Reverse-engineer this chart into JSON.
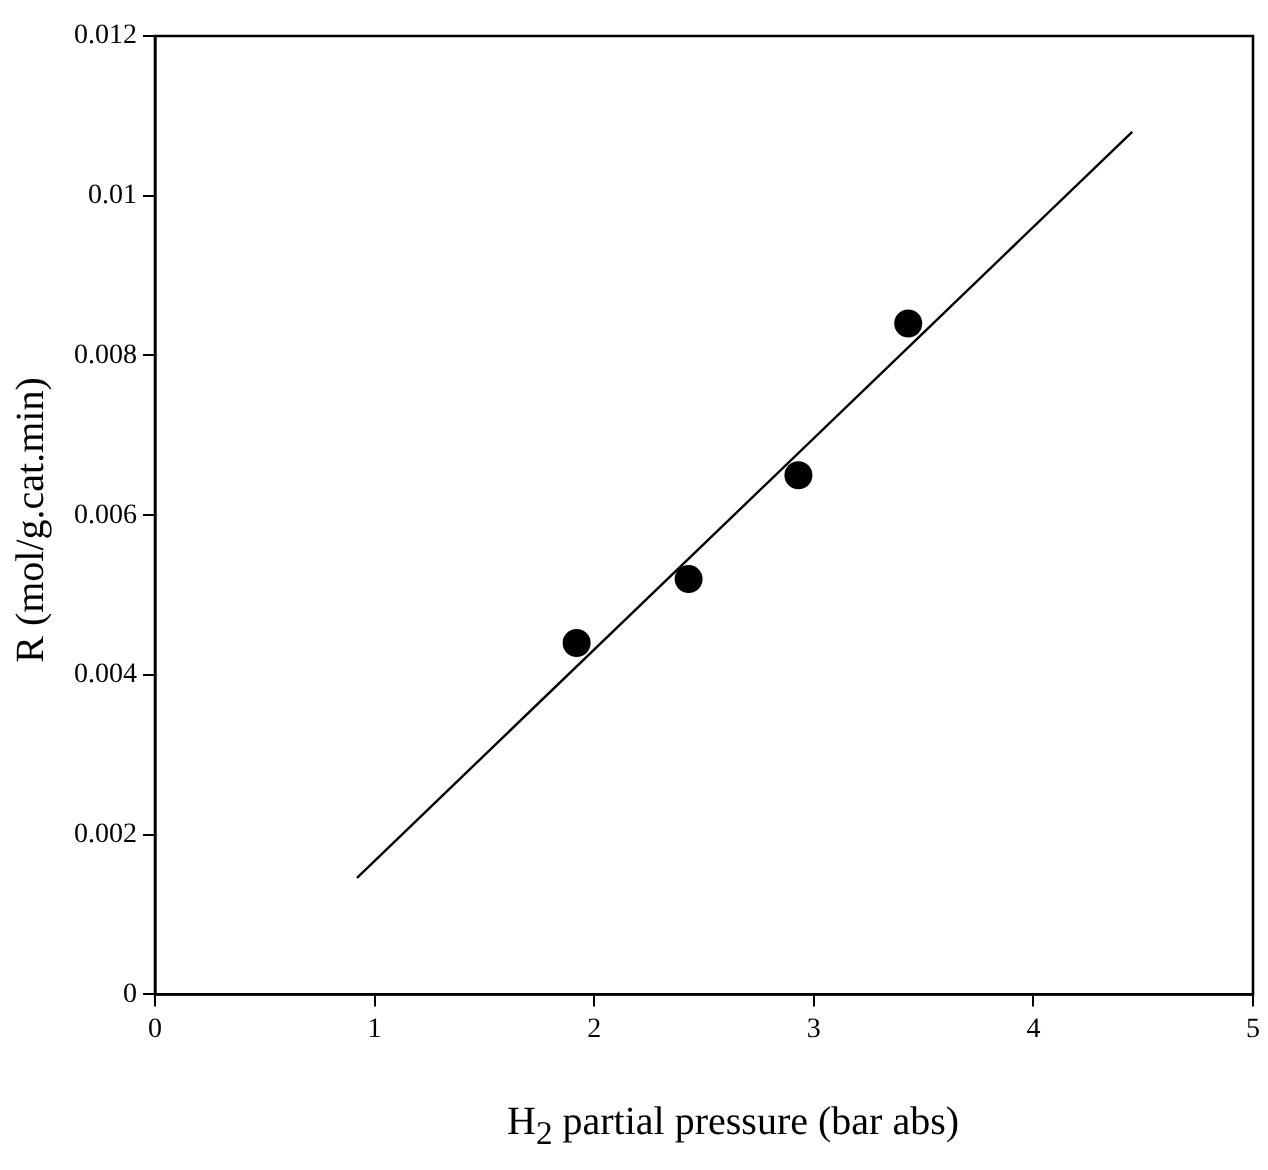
{
  "chart_data": {
    "type": "scatter",
    "xlabel": "H$_{2}$ partial pressure (bar abs)",
    "ylabel": "R (mol/g.cat.min)",
    "series": [
      {
        "color": "#000000",
        "marker": "circle",
        "x": [
          1.92,
          2.43,
          2.93,
          3.43
        ],
        "values": [
          0.0044,
          0.0052,
          0.0065,
          0.0084
        ]
      },
      {
        "type": "line",
        "color": "#000000",
        "marker": "none",
        "x": [
          0.92,
          4.45
        ],
        "values": [
          0.00146,
          0.0108
        ]
      }
    ],
    "xlim": [
      0,
      5
    ],
    "xticks": [
      0,
      1,
      2,
      3,
      4,
      5
    ],
    "ylim": [
      0,
      0.012
    ],
    "yticks": [
      0,
      0.002,
      0.004,
      0.006,
      0.008,
      0.01,
      0.012
    ],
    "grid": false,
    "legend": false
  }
}
